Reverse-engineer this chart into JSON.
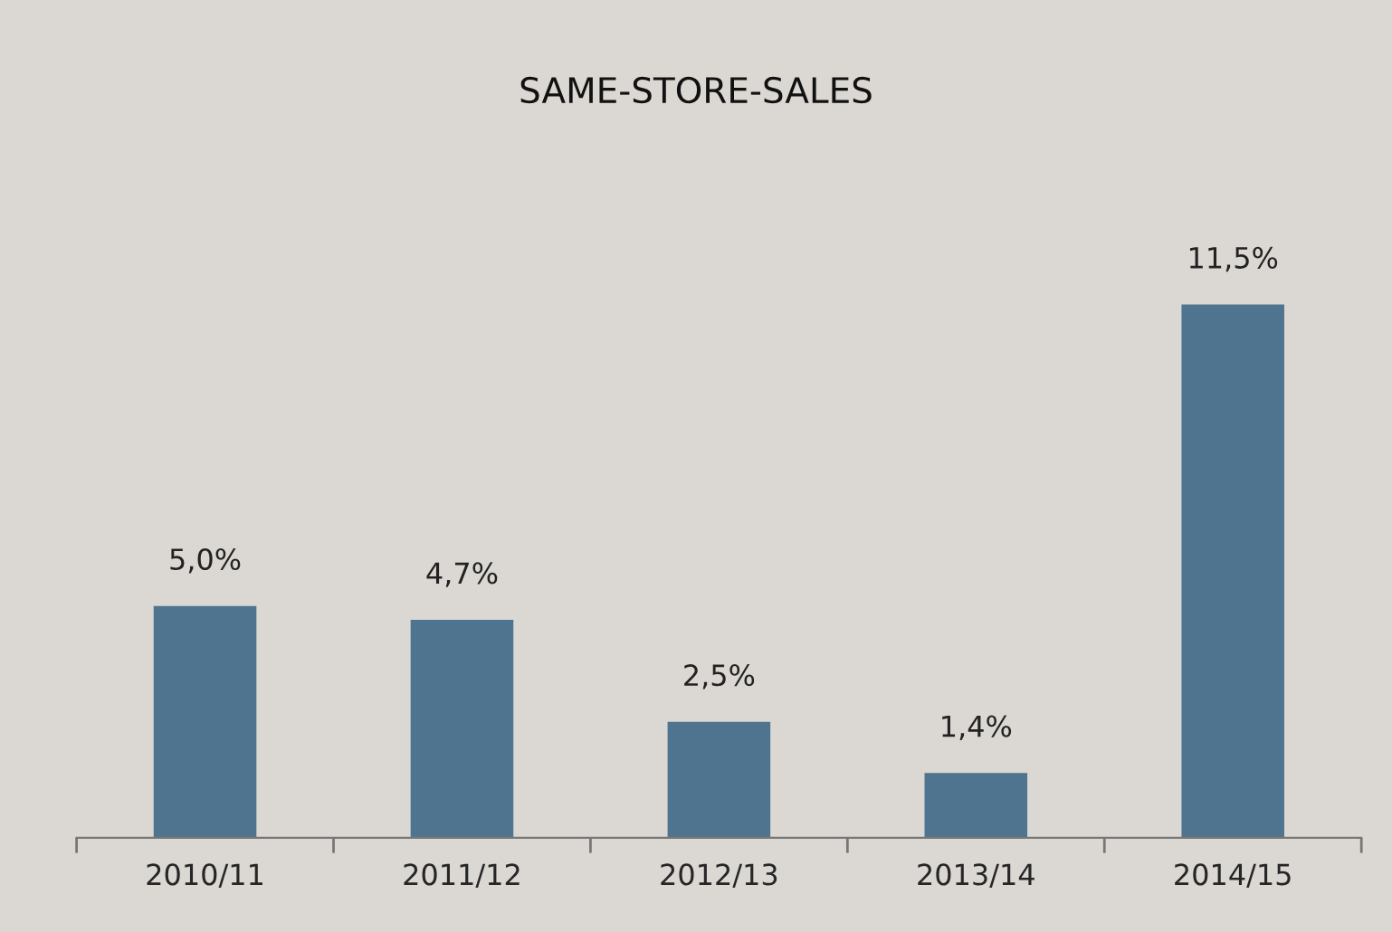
{
  "chart_data": {
    "type": "bar",
    "title": "SAME-STORE-SALES",
    "categories": [
      "2010/11",
      "2011/12",
      "2012/13",
      "2013/14",
      "2014/15"
    ],
    "values": [
      5.0,
      4.7,
      2.5,
      1.4,
      11.5
    ],
    "value_labels": [
      "5,0%",
      "4,7%",
      "2,5%",
      "1,4%",
      "11,5%"
    ],
    "color": "#4e7490",
    "tick_labels": "x",
    "grid": false,
    "legend": false
  }
}
